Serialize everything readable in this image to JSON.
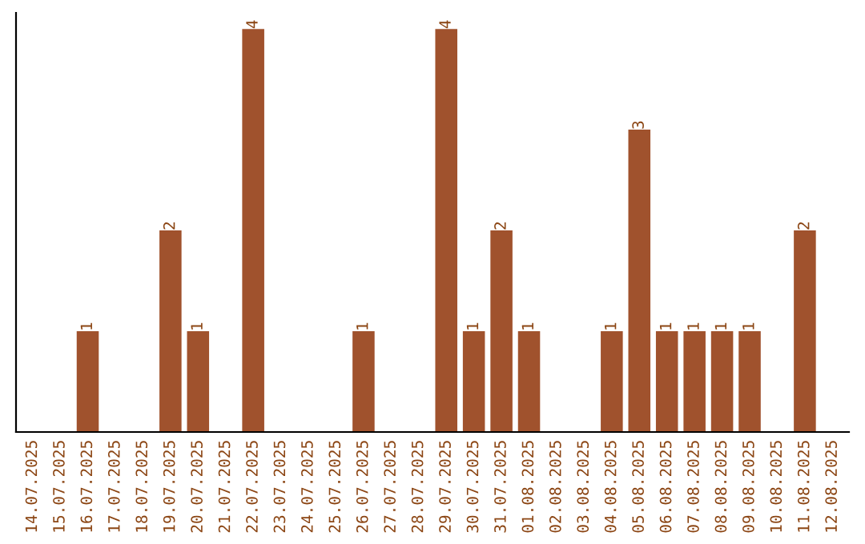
{
  "chart_data": {
    "type": "bar",
    "categories": [
      "14.07.2025",
      "15.07.2025",
      "16.07.2025",
      "17.07.2025",
      "18.07.2025",
      "19.07.2025",
      "20.07.2025",
      "21.07.2025",
      "22.07.2025",
      "23.07.2025",
      "24.07.2025",
      "25.07.2025",
      "26.07.2025",
      "27.07.2025",
      "28.07.2025",
      "29.07.2025",
      "30.07.2025",
      "31.07.2025",
      "01.08.2025",
      "02.08.2025",
      "03.08.2025",
      "04.08.2025",
      "05.08.2025",
      "06.08.2025",
      "07.08.2025",
      "08.08.2025",
      "09.08.2025",
      "10.08.2025",
      "11.08.2025",
      "12.08.2025"
    ],
    "values": [
      0,
      0,
      1,
      0,
      0,
      2,
      1,
      0,
      4,
      0,
      0,
      0,
      1,
      0,
      0,
      4,
      1,
      2,
      1,
      0,
      0,
      1,
      3,
      1,
      1,
      1,
      1,
      0,
      2,
      0
    ],
    "value_labels": [
      null,
      null,
      "1",
      null,
      null,
      "2",
      "1",
      null,
      "4",
      null,
      null,
      null,
      "1",
      null,
      null,
      "4",
      "1",
      "2",
      "1",
      null,
      null,
      "1",
      "3",
      "1",
      "1",
      "1",
      "1",
      null,
      "2",
      null
    ],
    "color": "#a0522d",
    "tick_labels": "x",
    "grid": false
  }
}
